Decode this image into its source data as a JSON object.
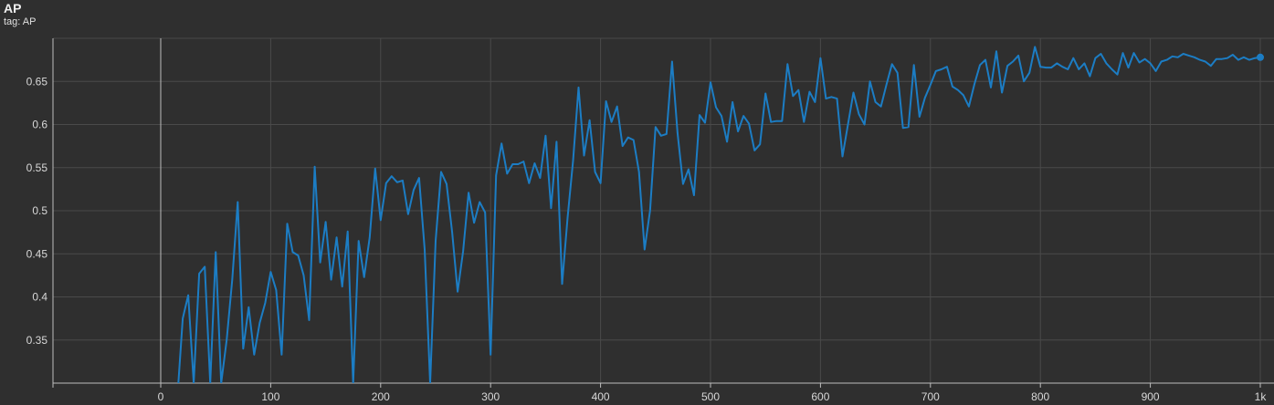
{
  "title": "AP",
  "subtitle": "tag: AP",
  "colors": {
    "background": "#2f2f2f",
    "grid": "#4a4a4a",
    "line": "#1c7dc4",
    "axis": "#bdbdbd"
  },
  "chart_data": {
    "type": "line",
    "title": "AP",
    "xlabel": "",
    "ylabel": "",
    "xlim": [
      -98,
      1000
    ],
    "ylim": [
      0.3,
      0.7
    ],
    "grid": true,
    "x_ticks": [
      0,
      100,
      200,
      300,
      400,
      500,
      600,
      700,
      800,
      900,
      1000
    ],
    "x_tick_labels": [
      "0",
      "100",
      "200",
      "300",
      "400",
      "500",
      "600",
      "700",
      "800",
      "900",
      "1k"
    ],
    "y_ticks": [
      0.35,
      0.4,
      0.45,
      0.5,
      0.55,
      0.6,
      0.65
    ],
    "y_tick_labels": [
      "0.35",
      "0.4",
      "0.45",
      "0.5",
      "0.55",
      "0.6",
      "0.65"
    ],
    "series": [
      {
        "x": [
          16,
          20,
          25,
          30,
          35,
          40,
          45,
          50,
          55,
          60,
          65,
          70,
          75,
          80,
          85,
          90,
          95,
          100,
          105,
          110,
          115,
          120,
          125,
          130,
          135,
          140,
          145,
          150,
          155,
          160,
          165,
          170,
          175,
          180,
          185,
          190,
          195,
          200,
          205,
          210,
          215,
          220,
          225,
          230,
          235,
          240,
          245,
          250,
          255,
          260,
          265,
          270,
          275,
          280,
          285,
          290,
          295,
          300,
          305,
          310,
          315,
          320,
          325,
          330,
          335,
          340,
          345,
          350,
          355,
          360,
          365,
          370,
          375,
          380,
          385,
          390,
          395,
          400,
          405,
          410,
          415,
          420,
          425,
          430,
          435,
          440,
          445,
          450,
          455,
          460,
          465,
          470,
          475,
          480,
          485,
          490,
          495,
          500,
          505,
          510,
          515,
          520,
          525,
          530,
          535,
          540,
          545,
          550,
          555,
          560,
          565,
          570,
          575,
          580,
          585,
          590,
          595,
          600,
          605,
          610,
          615,
          620,
          625,
          630,
          635,
          640,
          645,
          650,
          655,
          660,
          665,
          670,
          675,
          680,
          685,
          690,
          695,
          700,
          705,
          710,
          715,
          720,
          725,
          730,
          735,
          740,
          745,
          750,
          755,
          760,
          765,
          770,
          775,
          780,
          785,
          790,
          795,
          800,
          805,
          810,
          815,
          820,
          825,
          830,
          835,
          840,
          845,
          850,
          855,
          860,
          865,
          870,
          875,
          880,
          885,
          890,
          895,
          900,
          905,
          910,
          915,
          920,
          925,
          930,
          935,
          940,
          945,
          950,
          955,
          960,
          965,
          970,
          975,
          980,
          985,
          990,
          995,
          1000
        ],
        "y": [
          0.3,
          0.375,
          0.402,
          0.3,
          0.427,
          0.435,
          0.3,
          0.452,
          0.3,
          0.35,
          0.42,
          0.51,
          0.34,
          0.388,
          0.333,
          0.37,
          0.393,
          0.429,
          0.408,
          0.333,
          0.485,
          0.452,
          0.448,
          0.425,
          0.373,
          0.551,
          0.44,
          0.487,
          0.42,
          0.469,
          0.412,
          0.476,
          0.3,
          0.465,
          0.423,
          0.469,
          0.549,
          0.489,
          0.532,
          0.54,
          0.533,
          0.535,
          0.496,
          0.524,
          0.538,
          0.455,
          0.3,
          0.465,
          0.545,
          0.531,
          0.475,
          0.406,
          0.453,
          0.521,
          0.486,
          0.51,
          0.498,
          0.333,
          0.541,
          0.578,
          0.543,
          0.554,
          0.554,
          0.557,
          0.532,
          0.555,
          0.538,
          0.587,
          0.503,
          0.58,
          0.415,
          0.492,
          0.558,
          0.643,
          0.564,
          0.605,
          0.545,
          0.532,
          0.627,
          0.603,
          0.621,
          0.575,
          0.585,
          0.582,
          0.545,
          0.455,
          0.5,
          0.597,
          0.587,
          0.589,
          0.673,
          0.59,
          0.531,
          0.548,
          0.518,
          0.611,
          0.602,
          0.649,
          0.62,
          0.61,
          0.58,
          0.626,
          0.592,
          0.61,
          0.601,
          0.57,
          0.577,
          0.636,
          0.603,
          0.604,
          0.604,
          0.67,
          0.633,
          0.64,
          0.603,
          0.638,
          0.626,
          0.677,
          0.63,
          0.632,
          0.63,
          0.563,
          0.6,
          0.637,
          0.612,
          0.6,
          0.65,
          0.626,
          0.621,
          0.646,
          0.67,
          0.66,
          0.596,
          0.597,
          0.669,
          0.609,
          0.631,
          0.646,
          0.662,
          0.664,
          0.667,
          0.644,
          0.64,
          0.634,
          0.621,
          0.647,
          0.669,
          0.675,
          0.643,
          0.685,
          0.637,
          0.668,
          0.673,
          0.68,
          0.65,
          0.66,
          0.69,
          0.667,
          0.666,
          0.666,
          0.671,
          0.667,
          0.664,
          0.677,
          0.664,
          0.671,
          0.656,
          0.677,
          0.682,
          0.671,
          0.664,
          0.658,
          0.683,
          0.666,
          0.683,
          0.672,
          0.676,
          0.671,
          0.662,
          0.673,
          0.675,
          0.679,
          0.678,
          0.682,
          0.68,
          0.678,
          0.675,
          0.673,
          0.668,
          0.676,
          0.676,
          0.677,
          0.681,
          0.675,
          0.678,
          0.675,
          0.677,
          0.678
        ]
      }
    ],
    "last_point_marker": true
  }
}
